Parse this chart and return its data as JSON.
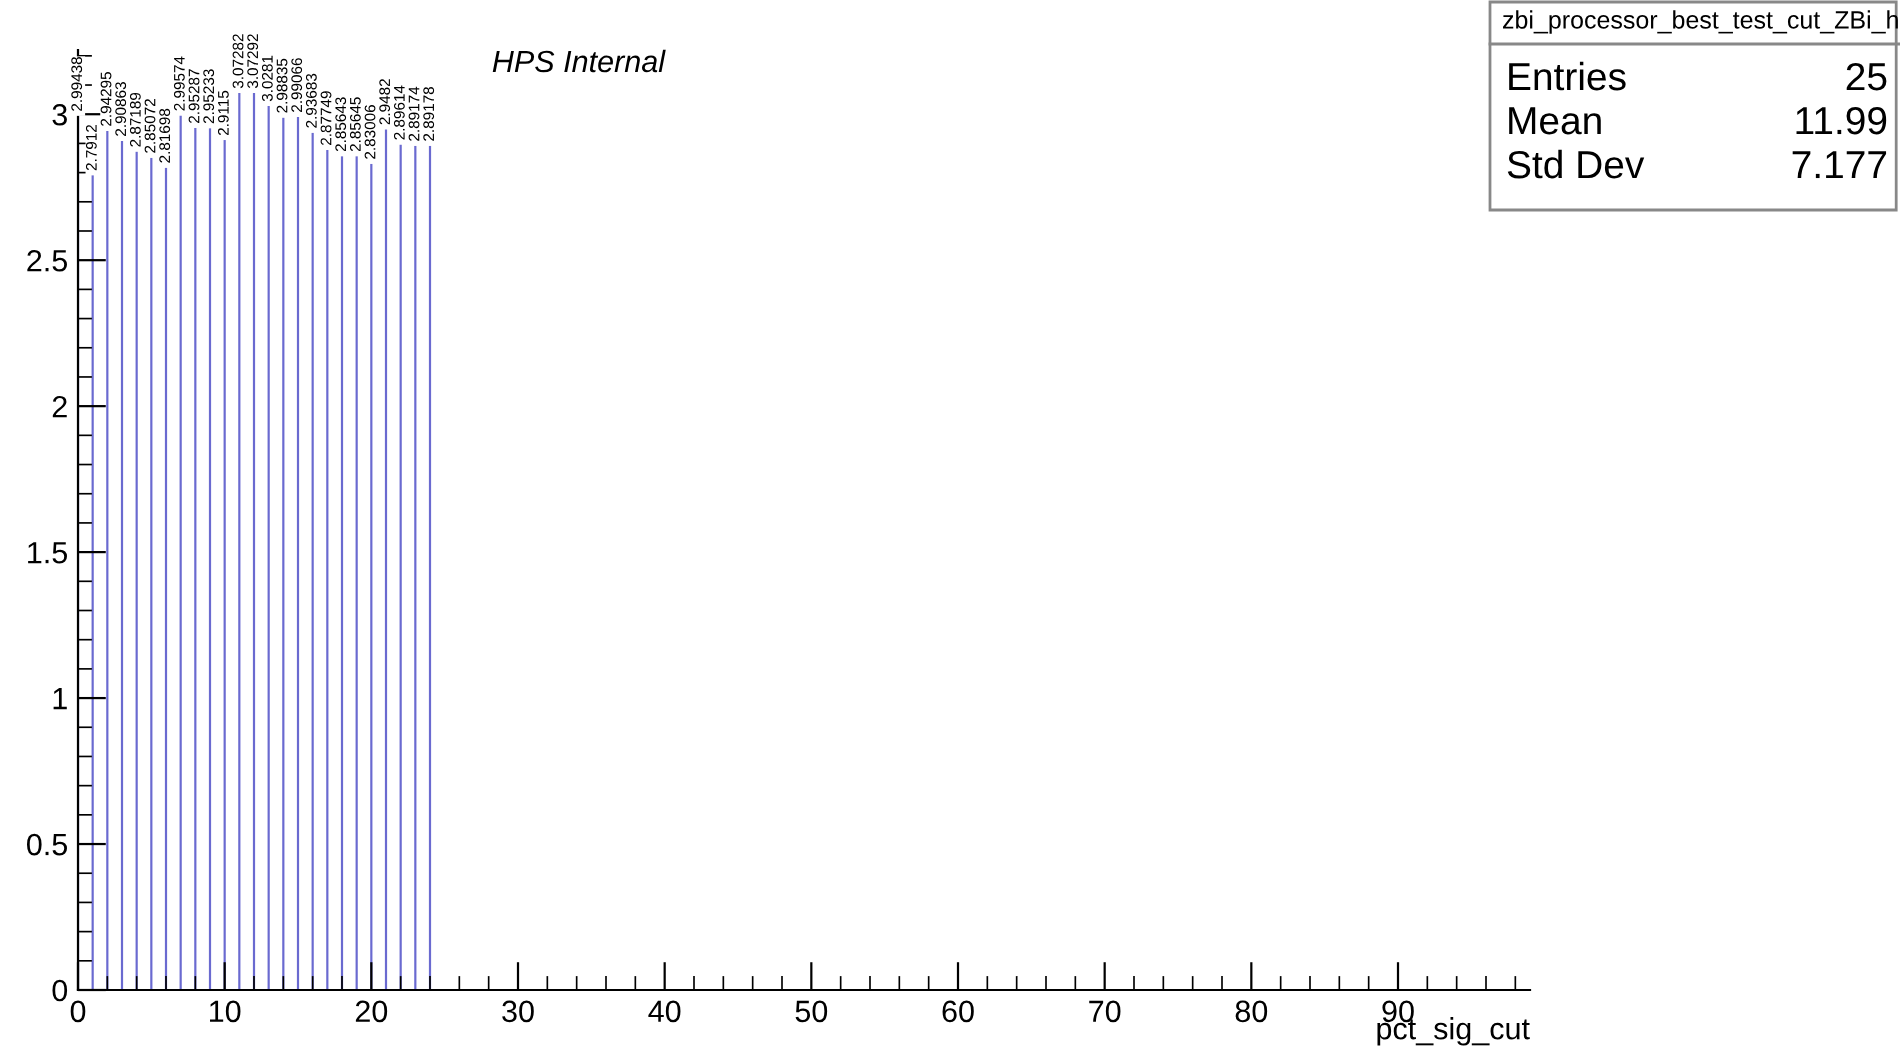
{
  "chart_data": {
    "type": "bar",
    "xlabel": "pct_sig_cut",
    "x": [
      0,
      1,
      2,
      3,
      4,
      5,
      6,
      7,
      8,
      9,
      10,
      11,
      12,
      13,
      14,
      15,
      16,
      17,
      18,
      19,
      20,
      21,
      22,
      23,
      24
    ],
    "values": [
      2.99438,
      2.7912,
      2.94295,
      2.90863,
      2.87189,
      2.85072,
      2.81698,
      2.99574,
      2.95287,
      2.95233,
      2.9115,
      3.07282,
      3.07292,
      3.0281,
      2.98835,
      2.99066,
      2.93683,
      2.87749,
      2.85643,
      2.85645,
      2.83006,
      2.9482,
      2.89614,
      2.89174,
      2.89178
    ],
    "color": "#6a6ad0",
    "xlim": [
      0,
      99
    ],
    "xticks": [
      0,
      10,
      20,
      30,
      40,
      50,
      60,
      70,
      80,
      90
    ],
    "ylim": [
      0,
      3.22
    ],
    "yticks": [
      0,
      0.5,
      1,
      1.5,
      2,
      2.5,
      3
    ],
    "data_labels": true,
    "grid": false,
    "annotations": [
      "HPS Internal",
      "zbi_processor_best_test_cut_ZBi_h",
      "Entries",
      "25",
      "Mean",
      "11.99",
      "Std Dev",
      "7.177"
    ]
  }
}
